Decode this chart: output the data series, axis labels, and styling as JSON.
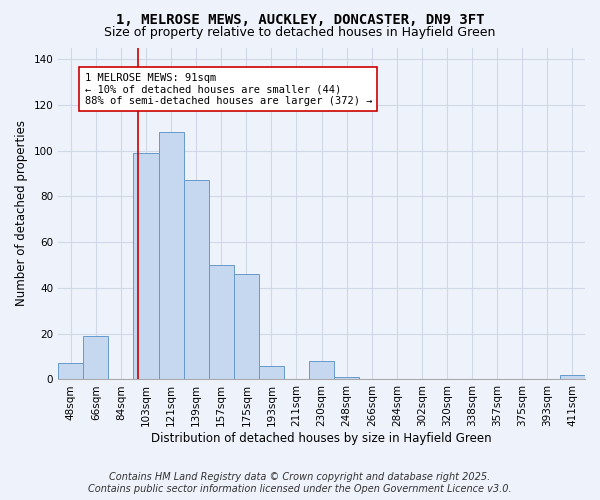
{
  "title": "1, MELROSE MEWS, AUCKLEY, DONCASTER, DN9 3FT",
  "subtitle": "Size of property relative to detached houses in Hayfield Green",
  "xlabel": "Distribution of detached houses by size in Hayfield Green",
  "ylabel": "Number of detached properties",
  "bar_color": "#c5d8f0",
  "bar_edge_color": "#6699cc",
  "background_color": "#eef2fa",
  "categories": [
    "48sqm",
    "66sqm",
    "84sqm",
    "103sqm",
    "121sqm",
    "139sqm",
    "157sqm",
    "175sqm",
    "193sqm",
    "211sqm",
    "230sqm",
    "248sqm",
    "266sqm",
    "284sqm",
    "302sqm",
    "320sqm",
    "338sqm",
    "357sqm",
    "375sqm",
    "393sqm",
    "411sqm"
  ],
  "values": [
    7,
    19,
    0,
    99,
    108,
    87,
    50,
    46,
    6,
    0,
    8,
    1,
    0,
    0,
    0,
    0,
    0,
    0,
    0,
    0,
    2
  ],
  "ylim": [
    0,
    145
  ],
  "yticks": [
    0,
    20,
    40,
    60,
    80,
    100,
    120,
    140
  ],
  "vline_color": "#cc0000",
  "vline_x_index": 3,
  "annotation_text": "1 MELROSE MEWS: 91sqm\n← 10% of detached houses are smaller (44)\n88% of semi-detached houses are larger (372) →",
  "annotation_box_color": "white",
  "annotation_box_edge": "#cc0000",
  "footer_line1": "Contains HM Land Registry data © Crown copyright and database right 2025.",
  "footer_line2": "Contains public sector information licensed under the Open Government Licence v3.0.",
  "title_fontsize": 10,
  "subtitle_fontsize": 9,
  "label_fontsize": 8.5,
  "tick_fontsize": 7.5,
  "footer_fontsize": 7
}
